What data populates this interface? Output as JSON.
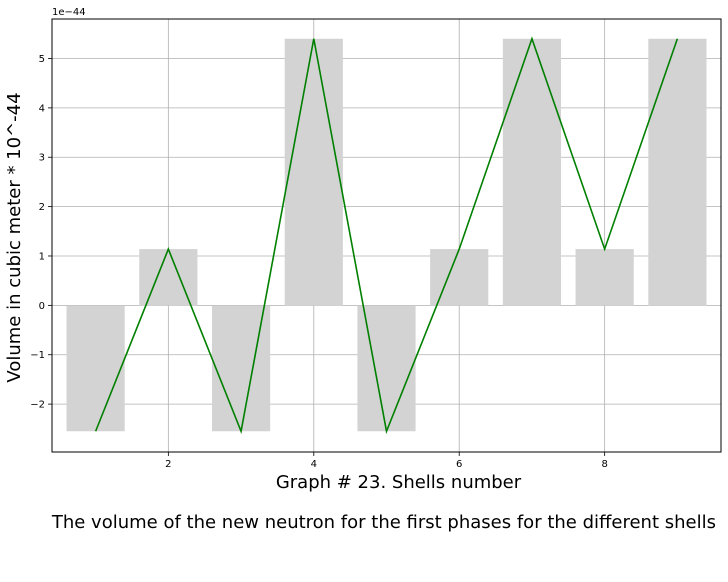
{
  "chart_data": {
    "type": "bar",
    "title": "",
    "xlabel": "Graph # 23. Shells number",
    "ylabel": "Volume in cubic meter * 10^-44",
    "offset_label": "1e−44",
    "x": [
      1,
      2,
      3,
      4,
      5,
      6,
      7,
      8,
      9
    ],
    "series": [
      {
        "type": "bar",
        "color": "#d3d3d3",
        "values": [
          -2.55,
          1.14,
          -2.55,
          5.4,
          -2.55,
          1.14,
          5.4,
          1.14,
          5.4
        ]
      },
      {
        "type": "line",
        "color": "#008000",
        "values": [
          -2.55,
          1.14,
          -2.55,
          5.4,
          -2.55,
          1.14,
          5.4,
          1.14,
          5.4
        ]
      }
    ],
    "xlim": [
      0.4,
      9.6
    ],
    "ylim": [
      -2.97,
      5.8
    ],
    "xticks": [
      2,
      4,
      6,
      8
    ],
    "yticks": [
      -2,
      -1,
      0,
      1,
      2,
      3,
      4,
      5
    ],
    "bar_width": 0.8,
    "grid": true,
    "legend": "none"
  },
  "caption": "The volume of the new neutron for the first phases for the different shells"
}
